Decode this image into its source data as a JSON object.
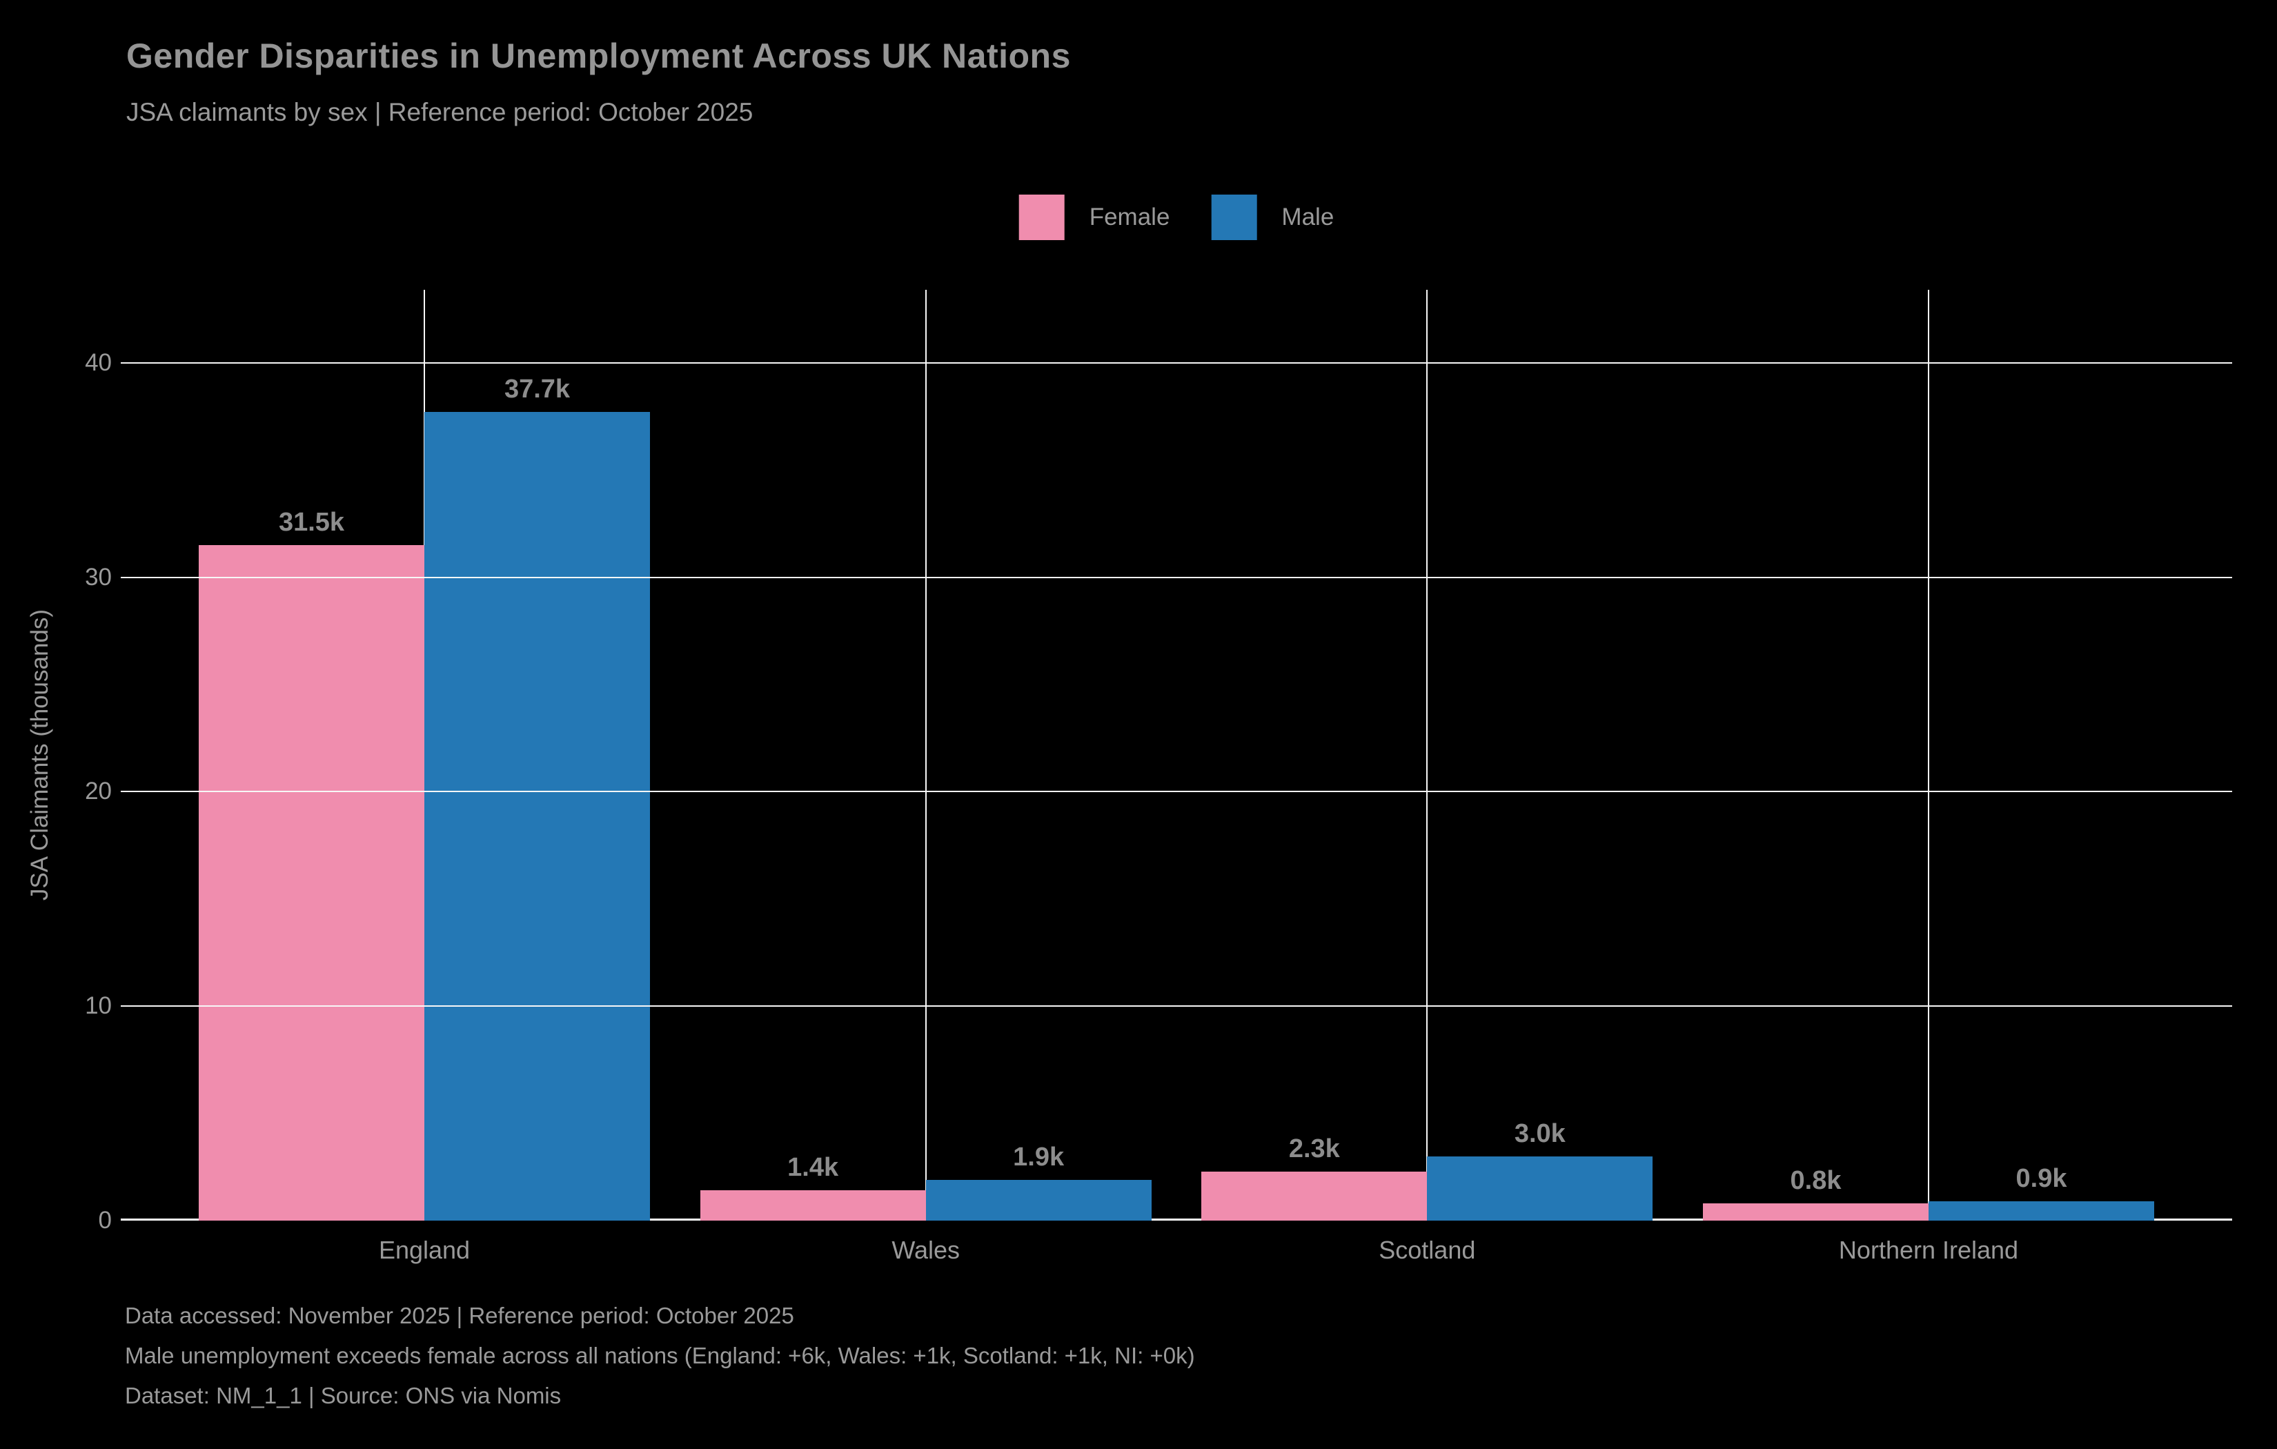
{
  "title": "Gender Disparities in Unemployment Across UK Nations",
  "subtitle": "JSA claimants by sex | Reference period: October 2025",
  "colors": {
    "background": "#000000",
    "grid": "#f7f7f7",
    "axis_line": "#ffffff",
    "text": "#9a9a9a",
    "title_text": "#959595",
    "value_label_text": "#8d8d8d",
    "female": "#f08dae",
    "male": "#2478b5"
  },
  "chart_data": {
    "type": "bar",
    "categories": [
      "England",
      "Wales",
      "Scotland",
      "Northern Ireland"
    ],
    "series": [
      {
        "name": "Female",
        "color": "#f08dae",
        "values": [
          31.5,
          1.4,
          2.3,
          0.8
        ],
        "labels": [
          "31.5k",
          "1.4k",
          "2.3k",
          "0.8k"
        ]
      },
      {
        "name": "Male",
        "color": "#2478b5",
        "values": [
          37.7,
          1.9,
          3.0,
          0.9
        ],
        "labels": [
          "37.7k",
          "1.9k",
          "3.0k",
          "0.9k"
        ]
      }
    ],
    "title": "Gender Disparities in Unemployment Across UK Nations",
    "subtitle": "JSA claimants by sex | Reference period: October 2025",
    "xlabel": "",
    "ylabel": "JSA Claimants (thousands)",
    "yticks": [
      0,
      10,
      20,
      30,
      40
    ],
    "ylim": [
      0,
      43.4
    ],
    "grid": true,
    "grid_x": true,
    "grid_y": true,
    "legend_position": "top-center",
    "legend": [
      "Female",
      "Male"
    ]
  },
  "footer": {
    "line1": "Data accessed: November 2025 | Reference period: October 2025",
    "line2": "Male unemployment exceeds female across all nations (England: +6k, Wales: +1k, Scotland: +1k, NI: +0k)",
    "line3": "Dataset: NM_1_1 | Source: ONS via Nomis"
  }
}
